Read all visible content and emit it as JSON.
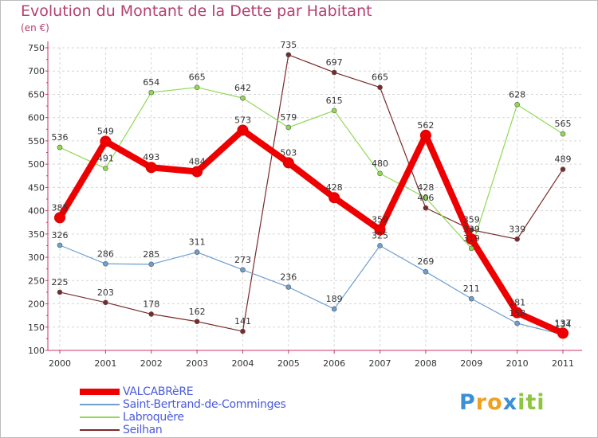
{
  "chart_data": {
    "type": "line",
    "title": "Evolution du Montant de la Dette par Habitant",
    "subtitle": "(en €)",
    "xlabel": "",
    "ylabel": "",
    "x": [
      "2000",
      "2001",
      "2002",
      "2003",
      "2004",
      "2005",
      "2006",
      "2007",
      "2008",
      "2009",
      "2010",
      "2011"
    ],
    "ylim": [
      100,
      750
    ],
    "yticks": [
      100,
      150,
      200,
      250,
      300,
      350,
      400,
      450,
      500,
      550,
      600,
      650,
      700,
      750
    ],
    "grid": true,
    "series": [
      {
        "name": "VALCABRèRE",
        "color": "#ee0000",
        "width": 8,
        "marker": 6.5,
        "values": [
          385,
          549,
          493,
          484,
          573,
          503,
          428,
          359,
          562,
          339,
          181,
          137
        ]
      },
      {
        "name": "Saint-Bertrand-de-Comminges",
        "color": "#6e9fcf",
        "width": 1.2,
        "marker": 3,
        "values": [
          326,
          286,
          285,
          311,
          273,
          236,
          189,
          325,
          269,
          211,
          158,
          134
        ]
      },
      {
        "name": "Labroquère",
        "color": "#8fda52",
        "width": 1.2,
        "marker": 3,
        "values": [
          536,
          491,
          654,
          665,
          642,
          579,
          615,
          480,
          428,
          319,
          628,
          565
        ]
      },
      {
        "name": "Seilhan",
        "color": "#7a2a2a",
        "width": 1.2,
        "marker": 3,
        "values": [
          225,
          203,
          178,
          162,
          141,
          735,
          697,
          665,
          406,
          359,
          339,
          489
        ]
      }
    ],
    "data_labels": [
      {
        "series": 0,
        "i": 0,
        "text": "385"
      },
      {
        "series": 0,
        "i": 1,
        "text": "549"
      },
      {
        "series": 0,
        "i": 2,
        "text": "493"
      },
      {
        "series": 0,
        "i": 3,
        "text": "484"
      },
      {
        "series": 0,
        "i": 4,
        "text": "573"
      },
      {
        "series": 0,
        "i": 5,
        "text": "503"
      },
      {
        "series": 0,
        "i": 6,
        "text": "428"
      },
      {
        "series": 0,
        "i": 7,
        "text": "359"
      },
      {
        "series": 0,
        "i": 8,
        "text": "562"
      },
      {
        "series": 0,
        "i": 9,
        "text": "339"
      },
      {
        "series": 0,
        "i": 10,
        "text": "181"
      },
      {
        "series": 0,
        "i": 11,
        "text": "137"
      },
      {
        "series": 1,
        "i": 0,
        "text": "326"
      },
      {
        "series": 1,
        "i": 1,
        "text": "286"
      },
      {
        "series": 1,
        "i": 2,
        "text": "285"
      },
      {
        "series": 1,
        "i": 3,
        "text": "311"
      },
      {
        "series": 1,
        "i": 4,
        "text": "273"
      },
      {
        "series": 1,
        "i": 5,
        "text": "236"
      },
      {
        "series": 1,
        "i": 6,
        "text": "189"
      },
      {
        "series": 1,
        "i": 7,
        "text": "325"
      },
      {
        "series": 1,
        "i": 8,
        "text": "269"
      },
      {
        "series": 1,
        "i": 9,
        "text": "211"
      },
      {
        "series": 1,
        "i": 10,
        "text": "158"
      },
      {
        "series": 1,
        "i": 11,
        "text": "134"
      },
      {
        "series": 2,
        "i": 0,
        "text": "536"
      },
      {
        "series": 2,
        "i": 1,
        "text": "491"
      },
      {
        "series": 2,
        "i": 2,
        "text": "654"
      },
      {
        "series": 2,
        "i": 3,
        "text": "665"
      },
      {
        "series": 2,
        "i": 4,
        "text": "642"
      },
      {
        "series": 2,
        "i": 5,
        "text": "579"
      },
      {
        "series": 2,
        "i": 6,
        "text": "615"
      },
      {
        "series": 2,
        "i": 7,
        "text": "480"
      },
      {
        "series": 2,
        "i": 8,
        "text": "428"
      },
      {
        "series": 2,
        "i": 9,
        "text": "319"
      },
      {
        "series": 2,
        "i": 10,
        "text": "628"
      },
      {
        "series": 2,
        "i": 11,
        "text": "565"
      },
      {
        "series": 3,
        "i": 0,
        "text": "225"
      },
      {
        "series": 3,
        "i": 1,
        "text": "203"
      },
      {
        "series": 3,
        "i": 2,
        "text": "178"
      },
      {
        "series": 3,
        "i": 3,
        "text": "162"
      },
      {
        "series": 3,
        "i": 4,
        "text": "141"
      },
      {
        "series": 3,
        "i": 5,
        "text": "735"
      },
      {
        "series": 3,
        "i": 6,
        "text": "697"
      },
      {
        "series": 3,
        "i": 7,
        "text": "665"
      },
      {
        "series": 3,
        "i": 8,
        "text": "406"
      },
      {
        "series": 3,
        "i": 9,
        "text": "359"
      },
      {
        "series": 3,
        "i": 10,
        "text": "339"
      },
      {
        "series": 3,
        "i": 11,
        "text": "489"
      }
    ],
    "legend": "bottom-left"
  },
  "logo": {
    "letters": [
      "P",
      "r",
      "o",
      "x",
      "i",
      "t",
      "i"
    ],
    "colors": [
      "#3a8fd6",
      "#f0a020",
      "#f0a020",
      "#3a8fd6",
      "#8cc63f",
      "#8cc63f",
      "#8cc63f"
    ]
  }
}
